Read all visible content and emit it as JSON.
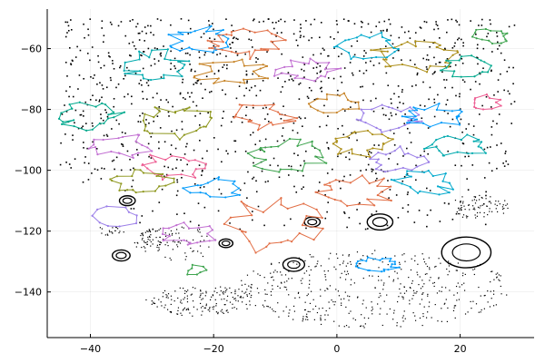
{
  "chart_data": {
    "type": "scatter",
    "title": "",
    "xlabel": "",
    "ylabel": "",
    "xlim": [
      -47,
      32
    ],
    "ylim": [
      -155,
      -47
    ],
    "xticks": [
      -40,
      -20,
      0,
      20
    ],
    "yticks": [
      -60,
      -80,
      -100,
      -120,
      -140
    ],
    "xtick_labels": [
      "−40",
      "−20",
      "0",
      "20"
    ],
    "ytick_labels": [
      "−60",
      "−80",
      "−100",
      "−120",
      "−140"
    ],
    "grid": true,
    "legend": "none",
    "colors": {
      "points": "#000000",
      "series_palette": [
        "#009AFA",
        "#E26F46",
        "#3EA44E",
        "#C270D2",
        "#AC8E18",
        "#00AAAE",
        "#ED5D92",
        "#C68225",
        "#00A98D",
        "#8E971E",
        "#00A9CD",
        "#9B7FE8"
      ]
    },
    "scatter_regions": [
      {
        "shape": "rect",
        "x": [
          -45,
          29
        ],
        "y": [
          -70,
          -50
        ],
        "n": 380
      },
      {
        "shape": "rect",
        "x": [
          -45,
          29
        ],
        "y": [
          -84,
          -70
        ],
        "n": 230
      },
      {
        "shape": "rect",
        "x": [
          -45,
          29
        ],
        "y": [
          -104,
          -84
        ],
        "n": 260
      },
      {
        "shape": "rect",
        "x": [
          -35,
          25
        ],
        "y": [
          -120,
          -104
        ],
        "n": 90
      },
      {
        "shape": "dot_grid",
        "cx": -22,
        "cy": -143,
        "rx": 9,
        "ry": 5,
        "n": 160
      },
      {
        "shape": "dot_grid",
        "cx": 6,
        "cy": -139,
        "rx": 22,
        "ry": 13,
        "n": 450
      },
      {
        "shape": "dot_grid",
        "cx": -26,
        "cy": -124,
        "rx": 7,
        "ry": 6,
        "n": 80
      },
      {
        "shape": "dot_grid",
        "cx": 23,
        "cy": -112,
        "rx": 5,
        "ry": 4,
        "n": 80
      },
      {
        "shape": "dot_grid",
        "cx": -37,
        "cy": -120,
        "rx": 2.5,
        "ry": 1.5,
        "n": 20
      },
      {
        "shape": "dot_grid",
        "cx": -29,
        "cy": -122,
        "rx": 3,
        "ry": 3,
        "n": 30
      }
    ],
    "rings": [
      {
        "x": -34,
        "y": -110,
        "r": 0.8
      },
      {
        "x": -35,
        "y": -128,
        "r": 0.9
      },
      {
        "x": -7,
        "y": -131,
        "r": 1.1
      },
      {
        "x": -4,
        "y": -117,
        "r": 0.8
      },
      {
        "x": 7,
        "y": -117,
        "r": 1.3
      },
      {
        "x": 21,
        "y": -127,
        "r": 2.5
      },
      {
        "x": -18,
        "y": -124,
        "r": 0.7
      }
    ],
    "series": [
      {
        "color": "#009AFA",
        "cx": -22,
        "cy": -57,
        "rx": 6,
        "ry": 5,
        "n": 22,
        "seed": 11
      },
      {
        "color": "#E26F46",
        "cx": -15,
        "cy": -58,
        "rx": 7,
        "ry": 6,
        "n": 24,
        "seed": 12
      },
      {
        "color": "#3EA44E",
        "cx": 25,
        "cy": -56,
        "rx": 4,
        "ry": 3,
        "n": 16,
        "seed": 13
      },
      {
        "color": "#C270D2",
        "cx": -5,
        "cy": -67,
        "rx": 6,
        "ry": 4,
        "n": 20,
        "seed": 14
      },
      {
        "color": "#AC8E18",
        "cx": 13,
        "cy": -62,
        "rx": 8,
        "ry": 6,
        "n": 26,
        "seed": 15
      },
      {
        "color": "#00AAAE",
        "cx": -29,
        "cy": -66,
        "rx": 6,
        "ry": 6,
        "n": 22,
        "seed": 16
      },
      {
        "color": "#ED5D92",
        "cx": 24,
        "cy": -78,
        "rx": 3,
        "ry": 3,
        "n": 12,
        "seed": 17
      },
      {
        "color": "#C68225",
        "cx": -17,
        "cy": -68,
        "rx": 7,
        "ry": 5,
        "n": 22,
        "seed": 18
      },
      {
        "color": "#00A98D",
        "cx": -40,
        "cy": -82,
        "rx": 6,
        "ry": 5,
        "n": 22,
        "seed": 19
      },
      {
        "color": "#8E971E",
        "cx": -26,
        "cy": -84,
        "rx": 7,
        "ry": 6,
        "n": 24,
        "seed": 20
      },
      {
        "color": "#00A9CD",
        "cx": 5,
        "cy": -59,
        "rx": 6,
        "ry": 5,
        "n": 20,
        "seed": 21
      },
      {
        "color": "#9B7FE8",
        "cx": 8,
        "cy": -83,
        "rx": 6,
        "ry": 5,
        "n": 20,
        "seed": 22
      },
      {
        "color": "#009AFA",
        "cx": 16,
        "cy": -82,
        "rx": 7,
        "ry": 4,
        "n": 20,
        "seed": 23
      },
      {
        "color": "#E26F46",
        "cx": -12,
        "cy": -82,
        "rx": 6,
        "ry": 5,
        "n": 20,
        "seed": 24
      },
      {
        "color": "#3EA44E",
        "cx": -8,
        "cy": -95,
        "rx": 7,
        "ry": 6,
        "n": 24,
        "seed": 25
      },
      {
        "color": "#C270D2",
        "cx": -35,
        "cy": -92,
        "rx": 6,
        "ry": 5,
        "n": 20,
        "seed": 26
      },
      {
        "color": "#AC8E18",
        "cx": 4,
        "cy": -91,
        "rx": 6,
        "ry": 5,
        "n": 22,
        "seed": 27
      },
      {
        "color": "#00AAAE",
        "cx": 20,
        "cy": -92,
        "rx": 6,
        "ry": 4,
        "n": 20,
        "seed": 28
      },
      {
        "color": "#ED5D92",
        "cx": -27,
        "cy": -99,
        "rx": 6,
        "ry": 5,
        "n": 20,
        "seed": 29
      },
      {
        "color": "#9B7FE8",
        "cx": 10,
        "cy": -97,
        "rx": 6,
        "ry": 5,
        "n": 20,
        "seed": 30
      },
      {
        "color": "#00A9CD",
        "cx": 14,
        "cy": -104,
        "rx": 6,
        "ry": 5,
        "n": 20,
        "seed": 31
      },
      {
        "color": "#E26F46",
        "cx": 3,
        "cy": -107,
        "rx": 7,
        "ry": 6,
        "n": 22,
        "seed": 32
      },
      {
        "color": "#E26F46",
        "cx": -10,
        "cy": -118,
        "rx": 9,
        "ry": 10,
        "n": 26,
        "seed": 33
      },
      {
        "color": "#8E971E",
        "cx": -32,
        "cy": -104,
        "rx": 6,
        "ry": 5,
        "n": 20,
        "seed": 34
      },
      {
        "color": "#009AFA",
        "cx": -20,
        "cy": -106,
        "rx": 5,
        "ry": 4,
        "n": 16,
        "seed": 35
      },
      {
        "color": "#9B7FE8",
        "cx": -36,
        "cy": -115,
        "rx": 5,
        "ry": 5,
        "n": 10,
        "seed": 36
      },
      {
        "color": "#C270D2",
        "cx": -24,
        "cy": -121,
        "rx": 5,
        "ry": 4,
        "n": 18,
        "seed": 37
      },
      {
        "color": "#009AFA",
        "cx": 7,
        "cy": -131,
        "rx": 4,
        "ry": 3,
        "n": 22,
        "seed": 38
      },
      {
        "color": "#3EA44E",
        "cx": -23,
        "cy": -133,
        "rx": 2,
        "ry": 2,
        "n": 8,
        "seed": 39
      },
      {
        "color": "#00A98D",
        "cx": 21,
        "cy": -66,
        "rx": 5,
        "ry": 4,
        "n": 16,
        "seed": 40
      },
      {
        "color": "#C68225",
        "cx": 0,
        "cy": -78,
        "rx": 5,
        "ry": 4,
        "n": 16,
        "seed": 41
      }
    ]
  }
}
